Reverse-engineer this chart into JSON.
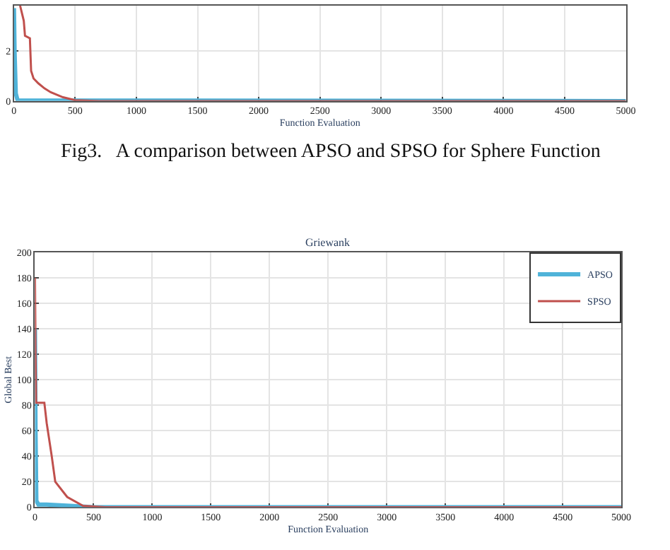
{
  "chart_data": [
    {
      "type": "line",
      "xlabel": "Function Evaluation",
      "annotations": [
        "Fig3.   A comparison between APSO and SPSO for Sphere Function"
      ],
      "xlim": [
        0,
        5000
      ],
      "xticks": [
        0,
        500,
        1000,
        1500,
        2000,
        2500,
        3000,
        3500,
        4000,
        4500,
        5000
      ],
      "ylim": [
        0,
        3.8
      ],
      "yticks": [
        0,
        2
      ],
      "grid": true,
      "legend": false,
      "series": [
        {
          "color": "#4fb3d9",
          "x": [
            0,
            5,
            15,
            30,
            5000
          ],
          "values": [
            3.7,
            2,
            0.3,
            0.02,
            0
          ]
        },
        {
          "color": "#c0504d",
          "x": [
            50,
            80,
            90,
            130,
            140,
            160,
            200,
            250,
            300,
            400,
            500,
            700,
            5000
          ],
          "values": [
            3.8,
            3.2,
            2.6,
            2.5,
            1.2,
            0.9,
            0.7,
            0.5,
            0.35,
            0.15,
            0.03,
            0,
            0
          ]
        }
      ]
    },
    {
      "type": "line",
      "title": "Griewank",
      "xlabel": "Function Evaluation",
      "ylabel": "Global Best",
      "xlim": [
        0,
        5000
      ],
      "xticks": [
        0,
        500,
        1000,
        1500,
        2000,
        2500,
        3000,
        3500,
        4000,
        4500,
        5000
      ],
      "ylim": [
        0,
        200
      ],
      "yticks": [
        0,
        20,
        40,
        60,
        80,
        100,
        120,
        140,
        160,
        180,
        200
      ],
      "grid": true,
      "legend": "top right",
      "series": [
        {
          "name": "APSO",
          "color": "#4fb3d9",
          "x": [
            0,
            5,
            12,
            30,
            100,
            300,
            500,
            5000
          ],
          "values": [
            140,
            60,
            5,
            2,
            2,
            1,
            0,
            0
          ]
        },
        {
          "name": "SPSO",
          "color": "#c0504d",
          "x": [
            0,
            5,
            10,
            80,
            100,
            143,
            173,
            275,
            410,
            600,
            5000
          ],
          "values": [
            180,
            120,
            82,
            82,
            66,
            40,
            20,
            8,
            1,
            0,
            0
          ]
        }
      ]
    }
  ]
}
